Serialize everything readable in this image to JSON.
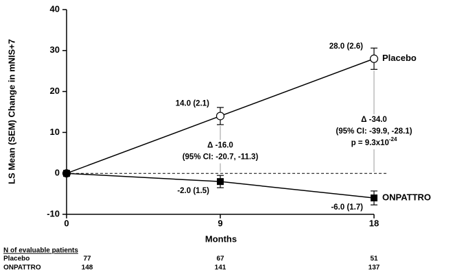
{
  "chart_data": {
    "type": "line",
    "x_label": "Months",
    "y_label": "LS Mean (SEM) Change in mNIS+7",
    "x": [
      0,
      9,
      18
    ],
    "xlim": [
      0,
      18
    ],
    "xticks": [
      0,
      9,
      18
    ],
    "ylim": [
      -10,
      40
    ],
    "yticks": [
      -10,
      0,
      10,
      20,
      30,
      40
    ],
    "zero_line": "dashed",
    "series": [
      {
        "name": "Placebo",
        "color": "#000000",
        "marker": "circle-open",
        "values": [
          0,
          14.0,
          28.0
        ],
        "errors": [
          null,
          2.1,
          2.6
        ],
        "value_labels": [
          null,
          "14.0 (2.1)",
          "28.0 (2.6)"
        ]
      },
      {
        "name": "ONPATTRO",
        "color": "#000000",
        "marker": "square",
        "values": [
          0,
          -2.0,
          -6.0
        ],
        "errors": [
          null,
          1.5,
          1.7
        ],
        "value_labels": [
          null,
          "-2.0 (1.5)",
          "-6.0 (1.7)"
        ]
      }
    ],
    "annotations": [
      {
        "lines": [
          "Δ -16.0",
          "(95% CI: -20.7, -11.3)"
        ]
      },
      {
        "lines": [
          "Δ -34.0",
          "(95% CI: -39.9, -28.1)"
        ],
        "p_value": {
          "base": "p = 9.3x10",
          "exponent": "-24"
        }
      }
    ],
    "patients_table": {
      "title": "N of evaluable patients",
      "rows": [
        {
          "label": "Placebo",
          "counts": [
            77,
            67,
            51
          ]
        },
        {
          "label": "ONPATTRO",
          "counts": [
            148,
            141,
            137
          ]
        }
      ]
    }
  }
}
